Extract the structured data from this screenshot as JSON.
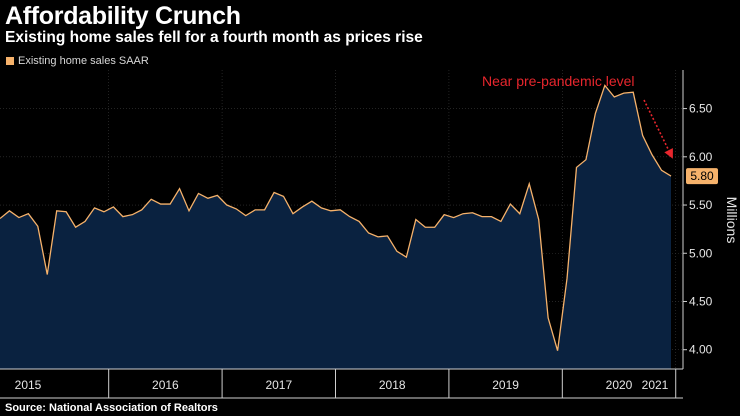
{
  "header": {
    "title": "Affordability Crunch",
    "subtitle": "Existing home sales fell for a fourth month as prices rise"
  },
  "source": "Source: National Association of Realtors",
  "colors": {
    "line": "#f6b26b",
    "fill": "#0a2240",
    "annotation": "#e8262d",
    "grid": "#3a3a3a"
  },
  "chart_data": {
    "type": "area",
    "title": "Affordability Crunch",
    "subtitle": "Existing home sales fell for a fourth month as prices rise",
    "xlabel": "",
    "ylabel": "Millions",
    "ylim": [
      3.8,
      6.9
    ],
    "y_ticks": [
      "4.00",
      "4.50",
      "5.00",
      "5.50",
      "6.00",
      "6.50"
    ],
    "y_tick_values": [
      4.0,
      4.5,
      5.0,
      5.5,
      6.0,
      6.5
    ],
    "x_years": [
      "2015",
      "2016",
      "2017",
      "2018",
      "2019",
      "2020",
      "2021"
    ],
    "grid": true,
    "legend_position": "top-left",
    "series": [
      {
        "name": "Existing home sales SAAR",
        "start": "2015-01",
        "values": [
          5.36,
          5.44,
          5.37,
          5.41,
          5.28,
          4.78,
          5.44,
          5.43,
          5.27,
          5.33,
          5.47,
          5.43,
          5.48,
          5.38,
          5.4,
          5.45,
          5.56,
          5.51,
          5.51,
          5.67,
          5.44,
          5.62,
          5.57,
          5.6,
          5.5,
          5.46,
          5.39,
          5.45,
          5.45,
          5.63,
          5.59,
          5.41,
          5.48,
          5.54,
          5.47,
          5.44,
          5.45,
          5.38,
          5.33,
          5.21,
          5.17,
          5.18,
          5.02,
          4.96,
          5.35,
          5.27,
          5.27,
          5.4,
          5.37,
          5.41,
          5.42,
          5.38,
          5.38,
          5.33,
          5.51,
          5.41,
          5.72,
          5.35,
          4.33,
          3.99,
          4.74,
          5.89,
          5.97,
          6.45,
          6.74,
          6.62,
          6.66,
          6.67,
          6.22,
          6.02,
          5.86,
          5.8
        ]
      }
    ],
    "last_value_label": "5.80",
    "annotation": "Near pre-pandemic level"
  }
}
